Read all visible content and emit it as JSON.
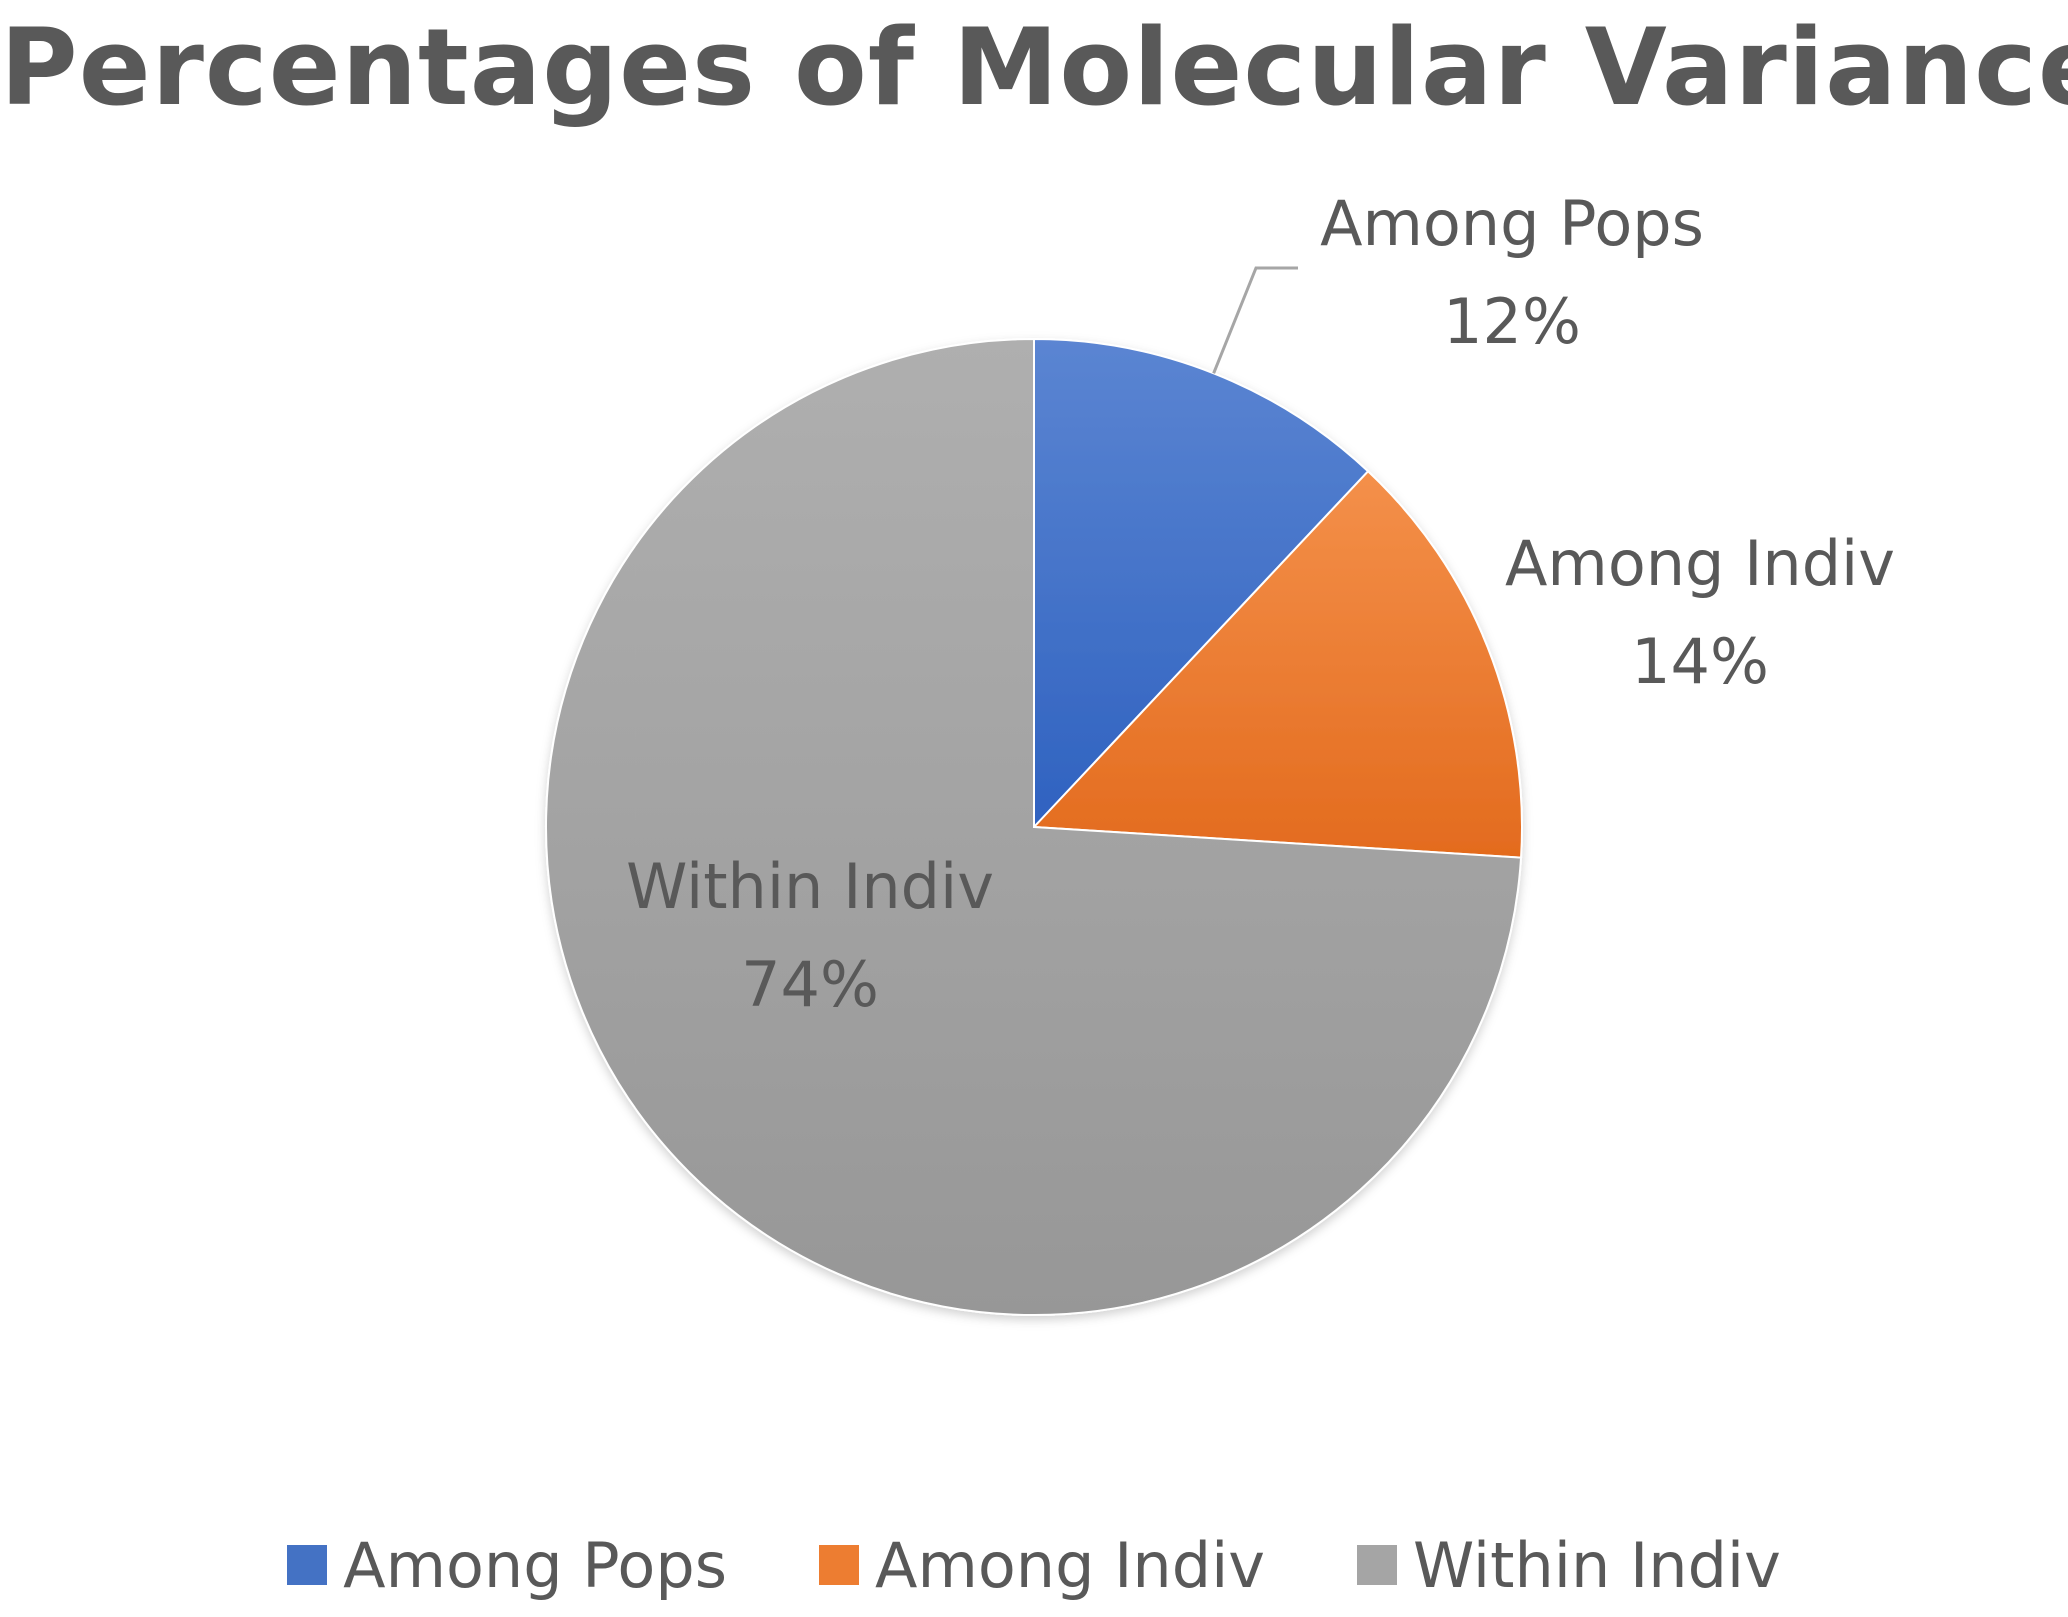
{
  "chart_data": {
    "type": "pie",
    "title": "Percentages of Molecular Variance",
    "categories": [
      "Among Pops",
      "Among Indiv",
      "Within Indiv"
    ],
    "values": [
      12,
      14,
      74
    ],
    "value_labels": [
      "12%",
      "14%",
      "74%"
    ],
    "colors": [
      "#4472C4",
      "#ED7D31",
      "#A5A5A5"
    ],
    "legend_position": "bottom",
    "start_angle": "12 o'clock",
    "direction": "clockwise"
  },
  "legend": {
    "items": [
      {
        "label": "Among Pops",
        "color": "#4472C4"
      },
      {
        "label": "Among Indiv",
        "color": "#ED7D31"
      },
      {
        "label": "Within Indiv",
        "color": "#A5A5A5"
      }
    ]
  }
}
